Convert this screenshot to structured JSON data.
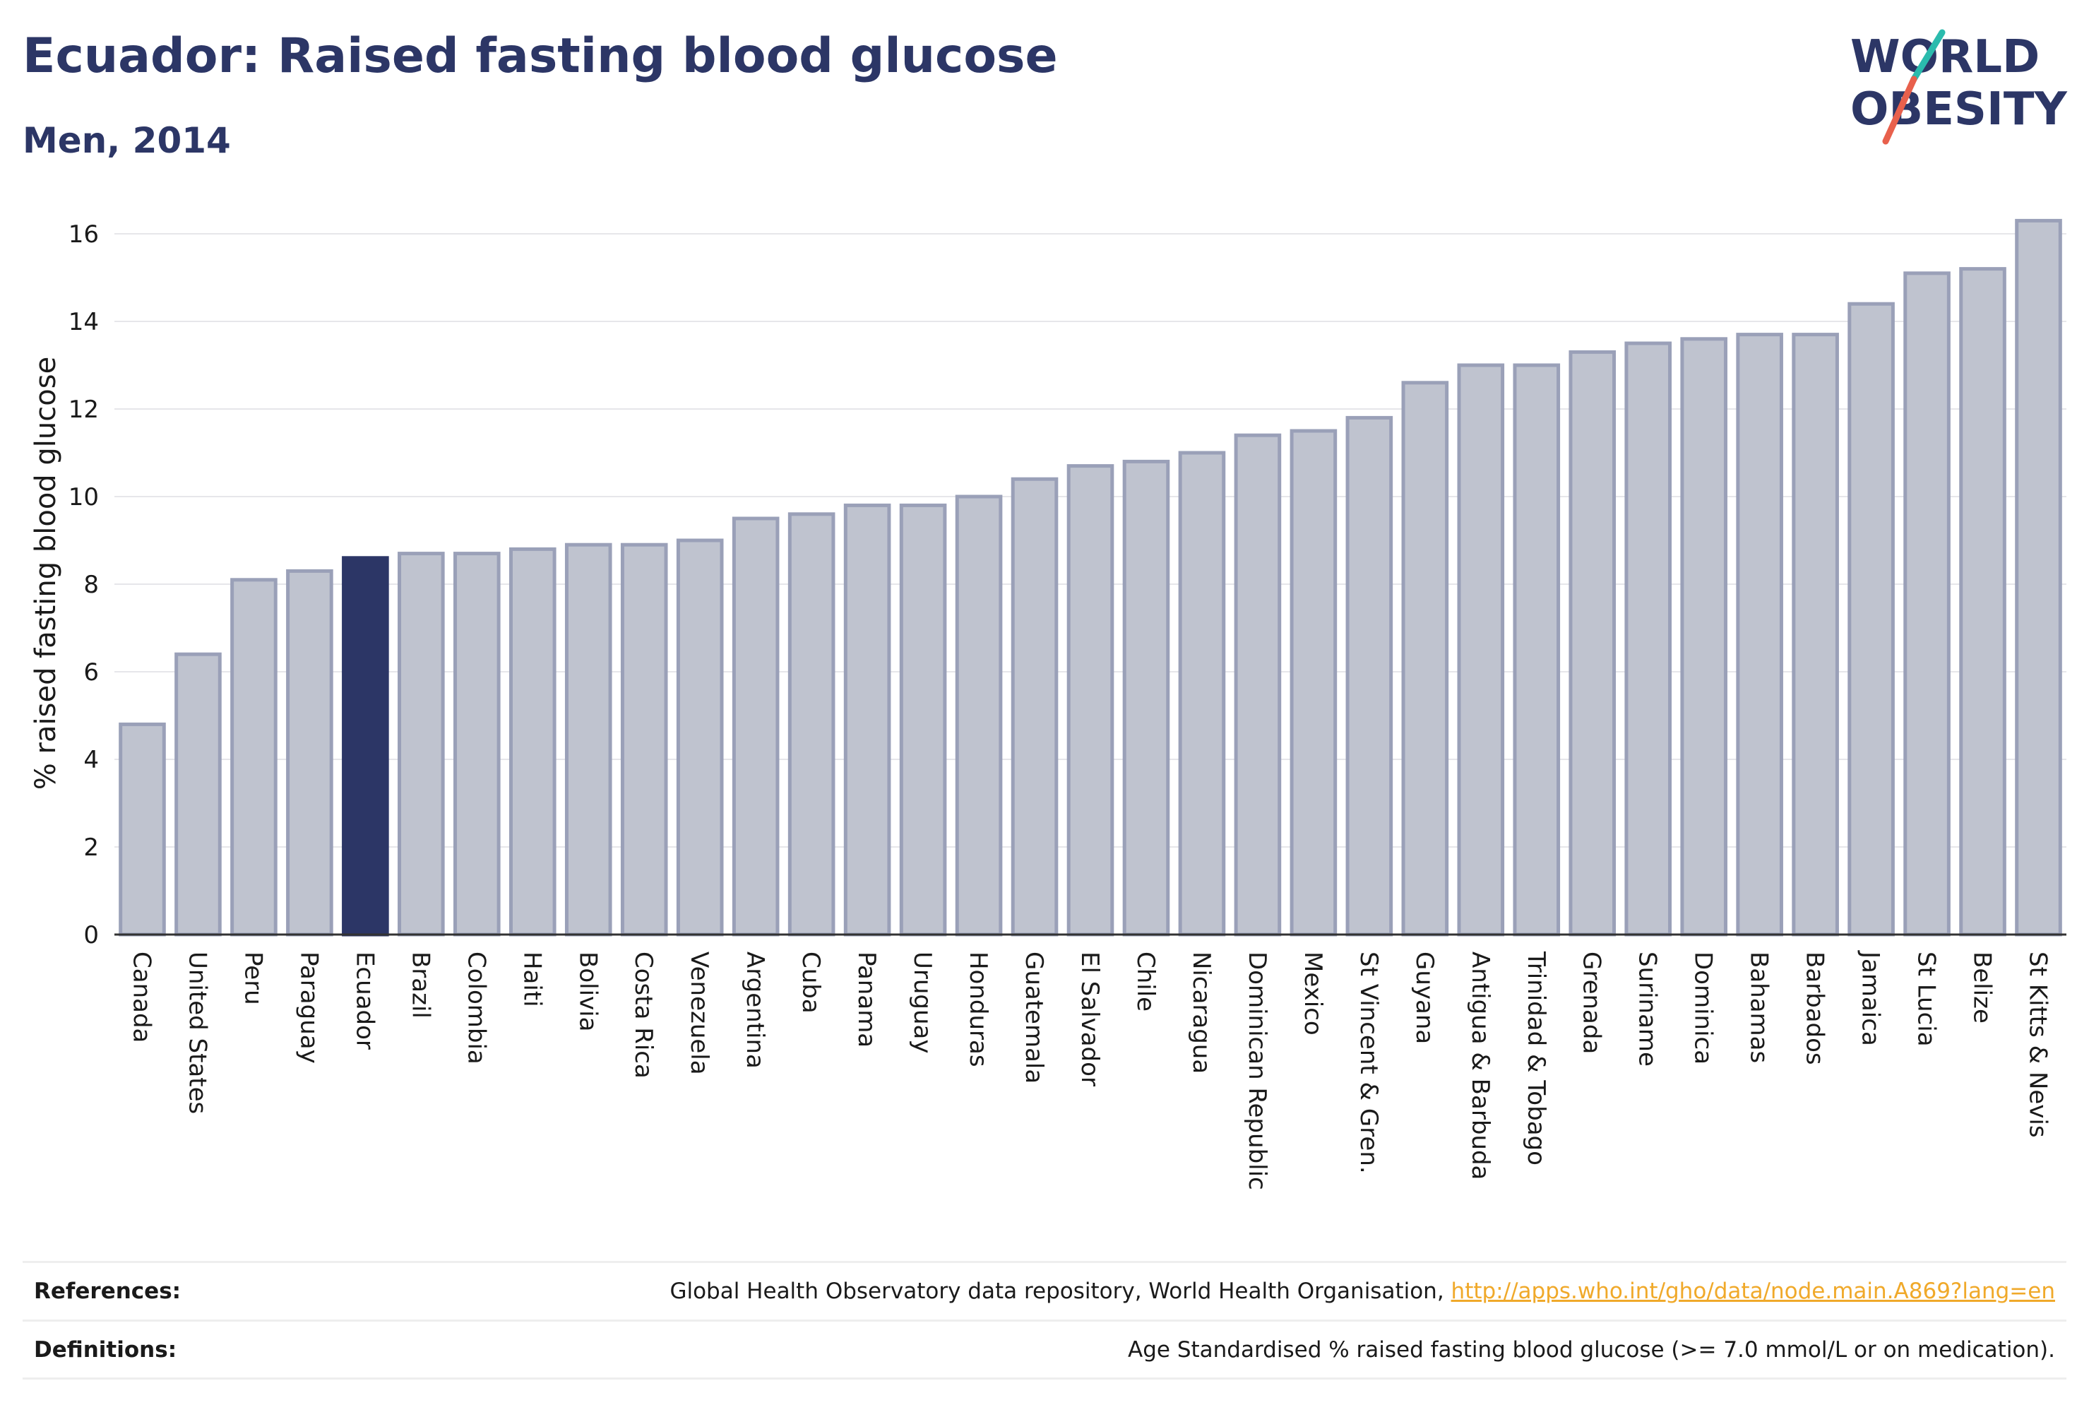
{
  "title": "Ecuador: Raised fasting blood glucose",
  "subtitle": "Men, 2014",
  "logo": {
    "line1": "WORLD",
    "line2": "OBESITY",
    "accent_teal": "#2bbbad",
    "accent_red": "#e8604c",
    "text_color": "#2c3666"
  },
  "colors": {
    "bar": "#bfc3cf",
    "bar_border": "#9aa0b8",
    "highlight": "#2c3666",
    "title": "#2c3666",
    "link": "#f0a92a"
  },
  "footer": {
    "references_label": "References:",
    "references_text": "Global Health Observatory data repository, World Health Organisation,",
    "references_link": "http://apps.who.int/gho/data/node.main.A869?lang=en",
    "definitions_label": "Definitions:",
    "definitions_text": "Age Standardised % raised fasting blood glucose (>= 7.0 mmol/L or on medication)."
  },
  "chart_data": {
    "type": "bar",
    "ylabel": "% raised fasting blood glucose",
    "xlabel": "",
    "ylim": [
      0,
      16.5
    ],
    "yticks": [
      0,
      2,
      4,
      6,
      8,
      10,
      12,
      14,
      16
    ],
    "grid": true,
    "highlight": "Ecuador",
    "categories": [
      "Canada",
      "United States",
      "Peru",
      "Paraguay",
      "Ecuador",
      "Brazil",
      "Colombia",
      "Haiti",
      "Bolivia",
      "Costa Rica",
      "Venezuela",
      "Argentina",
      "Cuba",
      "Panama",
      "Uruguay",
      "Honduras",
      "Guatemala",
      "El Salvador",
      "Chile",
      "Nicaragua",
      "Dominican Republic",
      "Mexico",
      "St Vincent & Gren.",
      "Guyana",
      "Antigua & Barbuda",
      "Trinidad & Tobago",
      "Grenada",
      "Suriname",
      "Dominica",
      "Bahamas",
      "Barbados",
      "Jamaica",
      "St Lucia",
      "Belize",
      "St Kitts & Nevis"
    ],
    "values": [
      4.8,
      6.4,
      8.1,
      8.3,
      8.6,
      8.7,
      8.7,
      8.8,
      8.9,
      8.9,
      9.0,
      9.5,
      9.6,
      9.8,
      9.8,
      10.0,
      10.4,
      10.7,
      10.8,
      11.0,
      11.4,
      11.5,
      11.8,
      12.6,
      13.0,
      13.0,
      13.3,
      13.5,
      13.6,
      13.7,
      13.7,
      14.4,
      15.1,
      15.2,
      16.3
    ]
  }
}
